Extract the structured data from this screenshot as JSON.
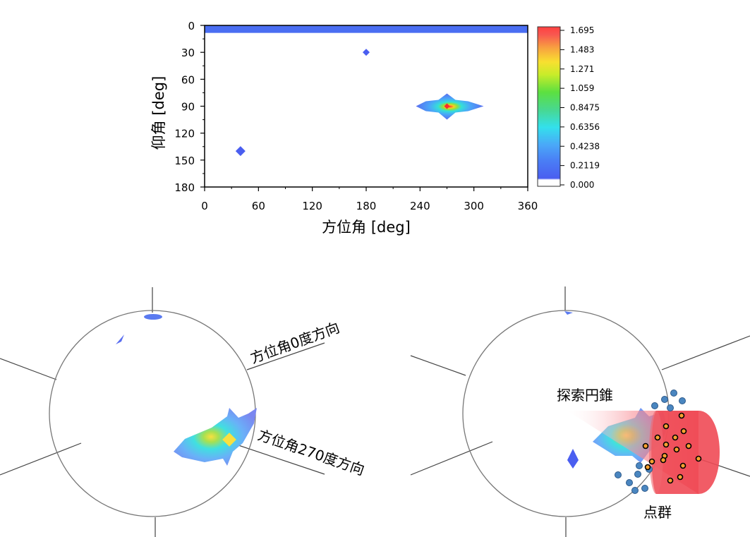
{
  "chart_data": [
    {
      "type": "heatmap",
      "xlabel": "方位角 [deg]",
      "ylabel": "仰角 [deg]",
      "xlim": [
        0,
        360
      ],
      "ylim": [
        180,
        0
      ],
      "x_ticks": [
        "0",
        "60",
        "120",
        "180",
        "240",
        "300",
        "360"
      ],
      "y_ticks": [
        "0",
        "30",
        "60",
        "90",
        "120",
        "150",
        "180"
      ],
      "colorbar": {
        "ticks": [
          "1.695",
          "1.483",
          "1.271",
          "1.059",
          "0.8475",
          "0.6356",
          "0.4238",
          "0.2119",
          "0.000"
        ],
        "min": 0.0,
        "max": 1.695,
        "colors": [
          "#ffffff",
          "#4a5ef0",
          "#4aa8f8",
          "#33e8e8",
          "#48d890",
          "#5ce040",
          "#c8ec2a",
          "#f8e030",
          "#f8a040",
          "#f85850",
          "#ff4040"
        ]
      },
      "features": [
        {
          "shape": "band",
          "azimuth": [
            0,
            360
          ],
          "elevation": [
            0,
            6
          ],
          "value": 0.21
        },
        {
          "shape": "spot",
          "azimuth": 180,
          "elevation": 30,
          "value": 0.21
        },
        {
          "shape": "spot",
          "azimuth": 40,
          "elevation": 140,
          "value": 0.21
        },
        {
          "shape": "peak",
          "azimuth": 270,
          "elevation": 90,
          "value": 1.695
        }
      ]
    }
  ],
  "sphere_left": {
    "label_az0": "方位角0度方向",
    "label_az270": "方位角270度方向"
  },
  "sphere_right": {
    "label_cone": "探索円錐",
    "label_points": "点群"
  },
  "colors": {
    "blue": "#4a5ef0",
    "cone_red": "#f04a55",
    "point_blue": "#4a86c0"
  }
}
